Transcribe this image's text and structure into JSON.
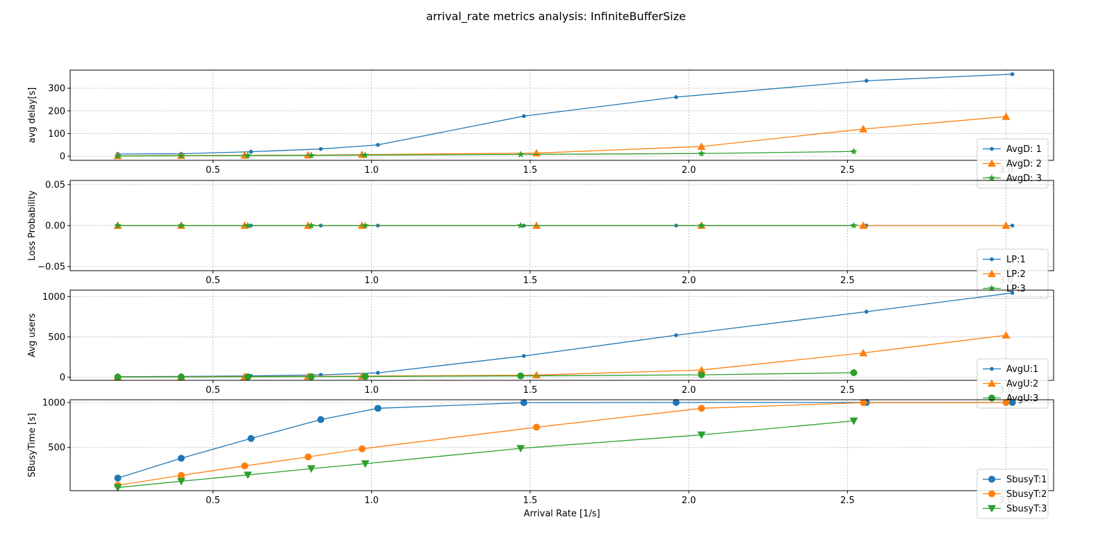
{
  "figure": {
    "title": "arrival_rate metrics analysis: InfiniteBufferSize",
    "xlabel": "Arrival Rate [1/s]"
  },
  "colors": {
    "blue": "#1f77b4",
    "orange": "#ff7f0e",
    "green": "#2ca02c"
  },
  "chart_data": [
    {
      "type": "line",
      "ylabel": "avg delay[s]",
      "xlim": [
        0.05,
        3.15
      ],
      "ylim": [
        -18,
        380
      ],
      "xticks": [
        0.5,
        1.0,
        1.5,
        2.0,
        2.5,
        3.0
      ],
      "xtick_labels": [
        "0.5",
        "1.0",
        "1.5",
        "2.0",
        "2.5",
        "3.0"
      ],
      "yticks": [
        0,
        100,
        200,
        300
      ],
      "ytick_labels": [
        "0",
        "100",
        "200",
        "300"
      ],
      "grid": true,
      "legend_position": "lower-right",
      "series": [
        {
          "name": "AvgD: 1",
          "marker": "point",
          "color": "#1f77b4",
          "x": [
            0.2,
            0.4,
            0.62,
            0.84,
            1.02,
            1.48,
            1.96,
            2.56,
            3.02
          ],
          "y": [
            10,
            11,
            20,
            32,
            50,
            177,
            261,
            333,
            362
          ]
        },
        {
          "name": "AvgD: 2",
          "marker": "triangle-up",
          "color": "#ff7f0e",
          "x": [
            0.2,
            0.4,
            0.6,
            0.8,
            0.97,
            1.52,
            2.04,
            2.55,
            3.0
          ],
          "y": [
            2,
            3,
            4,
            5,
            7,
            14,
            43,
            120,
            175
          ]
        },
        {
          "name": "AvgD: 3",
          "marker": "star",
          "color": "#2ca02c",
          "x": [
            0.2,
            0.4,
            0.61,
            0.81,
            0.98,
            1.47,
            2.04,
            2.52
          ],
          "y": [
            1,
            2,
            3,
            4,
            5,
            8,
            12,
            21
          ]
        }
      ]
    },
    {
      "type": "line",
      "ylabel": "Loss Probability",
      "xlim": [
        0.05,
        3.15
      ],
      "ylim": [
        -0.055,
        0.055
      ],
      "xticks": [
        0.5,
        1.0,
        1.5,
        2.0,
        2.5,
        3.0
      ],
      "xtick_labels": [
        "0.5",
        "1.0",
        "1.5",
        "2.0",
        "2.5",
        "3.0"
      ],
      "yticks": [
        -0.05,
        0.0,
        0.05
      ],
      "ytick_labels": [
        "−0.05",
        "0.00",
        "0.05"
      ],
      "grid": true,
      "legend_position": "lower-right",
      "series": [
        {
          "name": "LP:1",
          "marker": "point",
          "color": "#1f77b4",
          "x": [
            0.2,
            0.4,
            0.62,
            0.84,
            1.02,
            1.48,
            1.96,
            2.56,
            3.02
          ],
          "y": [
            0,
            0,
            0,
            0,
            0,
            0,
            0,
            0,
            0
          ]
        },
        {
          "name": "LP:2",
          "marker": "triangle-up",
          "color": "#ff7f0e",
          "x": [
            0.2,
            0.4,
            0.6,
            0.8,
            0.97,
            1.52,
            2.04,
            2.55,
            3.0
          ],
          "y": [
            0,
            0,
            0,
            0,
            0,
            0,
            0,
            0,
            0
          ]
        },
        {
          "name": "LP:3",
          "marker": "star",
          "color": "#2ca02c",
          "x": [
            0.2,
            0.4,
            0.61,
            0.81,
            0.98,
            1.47,
            2.04,
            2.52
          ],
          "y": [
            0,
            0,
            0,
            0,
            0,
            0,
            0,
            0
          ]
        }
      ]
    },
    {
      "type": "line",
      "ylabel": "Avg users",
      "xlim": [
        0.05,
        3.15
      ],
      "ylim": [
        -40,
        1080
      ],
      "xticks": [
        0.5,
        1.0,
        1.5,
        2.0,
        2.5,
        3.0
      ],
      "xtick_labels": [
        "0.5",
        "1.0",
        "1.5",
        "2.0",
        "2.5",
        "3.0"
      ],
      "yticks": [
        0,
        500,
        1000
      ],
      "ytick_labels": [
        "0",
        "500",
        "1000"
      ],
      "grid": true,
      "legend_position": "lower-right",
      "series": [
        {
          "name": "AvgU:1",
          "marker": "point",
          "color": "#1f77b4",
          "x": [
            0.2,
            0.4,
            0.62,
            0.84,
            1.02,
            1.48,
            1.96,
            2.56,
            3.02
          ],
          "y": [
            5,
            8,
            15,
            28,
            53,
            262,
            520,
            812,
            1045
          ]
        },
        {
          "name": "AvgU:2",
          "marker": "triangle-up",
          "color": "#ff7f0e",
          "x": [
            0.2,
            0.4,
            0.6,
            0.8,
            0.97,
            1.52,
            2.04,
            2.55,
            3.0
          ],
          "y": [
            2,
            4,
            6,
            9,
            12,
            25,
            88,
            300,
            520
          ]
        },
        {
          "name": "AvgU:3",
          "marker": "circle",
          "color": "#2ca02c",
          "x": [
            0.2,
            0.4,
            0.61,
            0.81,
            0.98,
            1.47,
            2.04,
            2.52
          ],
          "y": [
            1,
            2,
            4,
            6,
            8,
            15,
            28,
            55
          ]
        }
      ]
    },
    {
      "type": "line",
      "ylabel": "SBusyTime [s]",
      "xlim": [
        0.05,
        3.15
      ],
      "ylim": [
        20,
        1030
      ],
      "xticks": [
        0.5,
        1.0,
        1.5,
        2.0,
        2.5,
        3.0
      ],
      "xtick_labels": [
        "0.5",
        "1.0",
        "1.5",
        "2.0",
        "2.5",
        "3.0"
      ],
      "yticks": [
        500,
        1000
      ],
      "ytick_labels": [
        "500",
        "1000"
      ],
      "grid": true,
      "legend_position": "lower-right",
      "series": [
        {
          "name": "SbusyT:1",
          "marker": "circle",
          "color": "#1f77b4",
          "x": [
            0.2,
            0.4,
            0.62,
            0.84,
            1.02,
            1.48,
            1.96,
            2.56,
            3.02
          ],
          "y": [
            160,
            380,
            600,
            810,
            935,
            998,
            1000,
            1000,
            1000
          ]
        },
        {
          "name": "SbusyT:2",
          "marker": "circle",
          "color": "#ff7f0e",
          "x": [
            0.2,
            0.4,
            0.6,
            0.8,
            0.97,
            1.52,
            2.04,
            2.55,
            3.0
          ],
          "y": [
            80,
            190,
            295,
            395,
            485,
            725,
            935,
            998,
            999
          ]
        },
        {
          "name": "SbusyT:3",
          "marker": "triangle-down",
          "color": "#2ca02c",
          "x": [
            0.2,
            0.4,
            0.61,
            0.81,
            0.98,
            1.47,
            2.04,
            2.52
          ],
          "y": [
            55,
            125,
            195,
            265,
            320,
            490,
            640,
            795
          ]
        }
      ]
    }
  ]
}
